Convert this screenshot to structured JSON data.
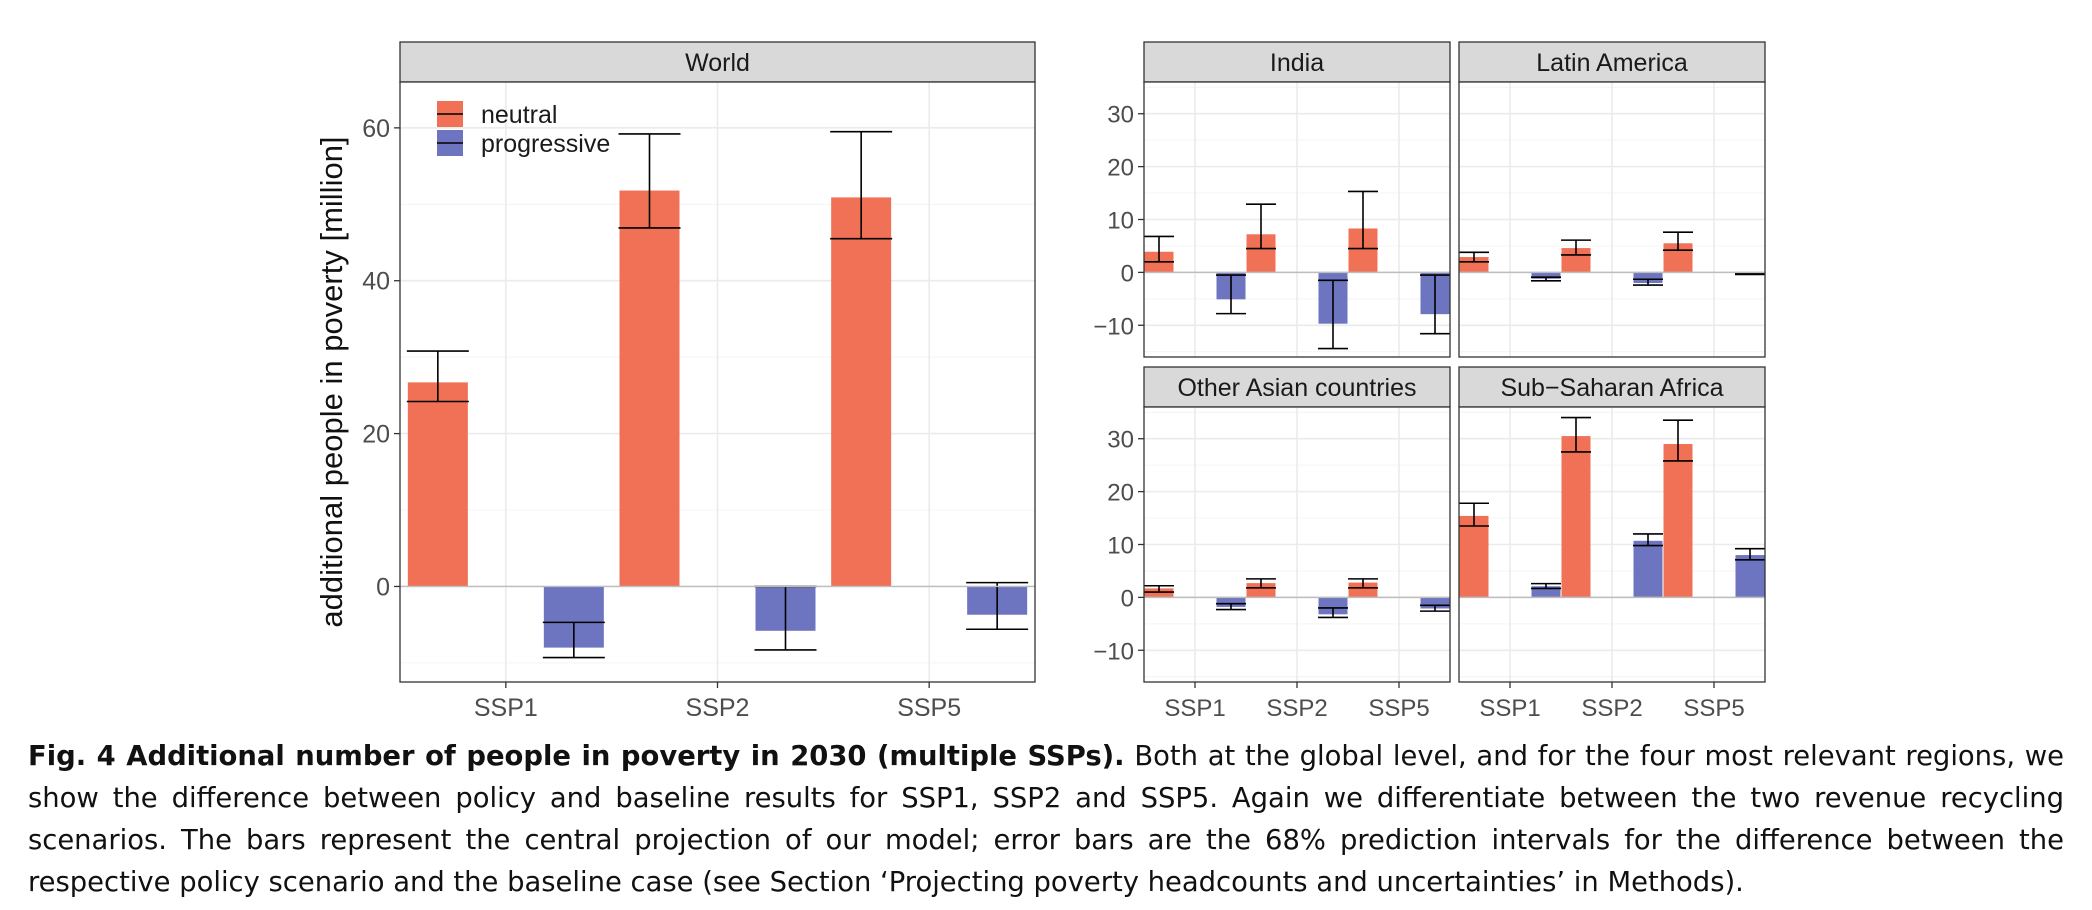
{
  "colors": {
    "neutral": "#F07156",
    "progressive": "#6D74C0",
    "strip": "#D9D9D9",
    "grid_major": "#EBEBEB",
    "grid_minor": "#F4F4F4"
  },
  "legend": {
    "items": [
      {
        "label": "neutral",
        "color": "#F07156"
      },
      {
        "label": "progressive",
        "color": "#6D74C0"
      }
    ]
  },
  "chart_data": [
    {
      "type": "bar",
      "title": "World",
      "categories": [
        "SSP1",
        "SSP2",
        "SSP5"
      ],
      "ylabel": "additional people in poverty [million]",
      "ylim": [
        -12.5,
        66
      ],
      "yticks": [
        0,
        20,
        40,
        60
      ],
      "series": [
        {
          "name": "neutral",
          "values": [
            26.7,
            51.8,
            50.9
          ],
          "error_low": [
            24.2,
            46.9,
            45.5
          ],
          "error_high": [
            30.8,
            59.2,
            59.5
          ]
        },
        {
          "name": "progressive",
          "values": [
            -8.0,
            -5.8,
            -3.7
          ],
          "error_low": [
            -9.3,
            -8.3,
            -5.6
          ],
          "error_high": [
            -4.7,
            0,
            0.5
          ]
        }
      ]
    },
    {
      "type": "bar",
      "title": "India",
      "categories": [
        "SSP1",
        "SSP2",
        "SSP5"
      ],
      "ylim": [
        -16,
        36
      ],
      "yticks": [
        -10,
        0,
        10,
        20,
        30
      ],
      "series": [
        {
          "name": "neutral",
          "values": [
            3.9,
            7.2,
            8.3
          ],
          "error_low": [
            2.0,
            4.5,
            4.5
          ],
          "error_high": [
            6.8,
            12.9,
            15.3
          ]
        },
        {
          "name": "progressive",
          "values": [
            -5.1,
            -9.7,
            -7.9
          ],
          "error_low": [
            -7.8,
            -14.4,
            -11.6
          ],
          "error_high": [
            -0.5,
            -1.5,
            -0.5
          ]
        }
      ]
    },
    {
      "type": "bar",
      "title": "Latin America",
      "categories": [
        "SSP1",
        "SSP2",
        "SSP5"
      ],
      "ylim": [
        -16,
        36
      ],
      "yticks": [
        -10,
        0,
        10,
        20,
        30
      ],
      "series": [
        {
          "name": "neutral",
          "values": [
            2.9,
            4.6,
            5.5
          ],
          "error_low": [
            2.0,
            3.3,
            4.2
          ],
          "error_high": [
            3.8,
            6.1,
            7.6
          ]
        },
        {
          "name": "progressive",
          "values": [
            -1.2,
            -2.0,
            -0.3
          ],
          "error_low": [
            -1.6,
            -2.4,
            -0.4
          ],
          "error_high": [
            -0.9,
            -1.3,
            -0.2
          ]
        }
      ]
    },
    {
      "type": "bar",
      "title": "Other Asian countries",
      "categories": [
        "SSP1",
        "SSP2",
        "SSP5"
      ],
      "ylim": [
        -16,
        36
      ],
      "yticks": [
        -10,
        0,
        10,
        20,
        30
      ],
      "series": [
        {
          "name": "neutral",
          "values": [
            1.7,
            2.7,
            2.8
          ],
          "error_low": [
            1.0,
            1.8,
            1.8
          ],
          "error_high": [
            2.2,
            3.5,
            3.5
          ]
        },
        {
          "name": "progressive",
          "values": [
            -1.8,
            -3.2,
            -2.1
          ],
          "error_low": [
            -2.3,
            -3.8,
            -2.6
          ],
          "error_high": [
            -1.2,
            -2.0,
            -1.5
          ]
        }
      ]
    },
    {
      "type": "bar",
      "title": "Sub−Saharan Africa",
      "categories": [
        "SSP1",
        "SSP2",
        "SSP5"
      ],
      "ylim": [
        -16,
        36
      ],
      "yticks": [
        -10,
        0,
        10,
        20,
        30
      ],
      "series": [
        {
          "name": "neutral",
          "values": [
            15.4,
            30.5,
            29.0
          ],
          "error_low": [
            13.5,
            27.5,
            25.8
          ],
          "error_high": [
            17.8,
            34.0,
            33.5
          ]
        },
        {
          "name": "progressive",
          "values": [
            2.1,
            10.7,
            8.0
          ],
          "error_low": [
            1.7,
            9.8,
            7.1
          ],
          "error_high": [
            2.6,
            12.0,
            9.2
          ]
        }
      ]
    }
  ],
  "caption": {
    "title": "Fig. 4 Additional number of people in poverty in 2030 (multiple SSPs).",
    "text": "Both at the global level, and for the four most relevant regions, we show the difference between policy and baseline results for SSP1, SSP2 and SSP5. Again we differentiate between the two revenue recycling scenarios. The bars represent the central projection of our model; error bars are the 68% prediction intervals for the difference between the respective policy scenario and the baseline case (see Section ‘Projecting poverty headcounts and uncertainties’ in Methods)."
  }
}
